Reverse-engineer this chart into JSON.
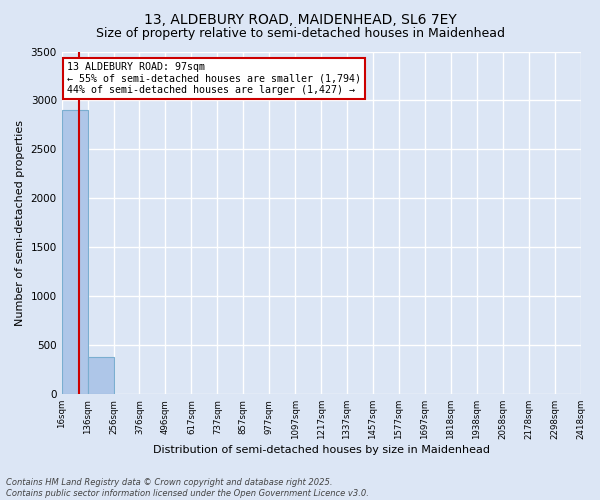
{
  "title1": "13, ALDEBURY ROAD, MAIDENHEAD, SL6 7EY",
  "title2": "Size of property relative to semi-detached houses in Maidenhead",
  "xlabel": "Distribution of semi-detached houses by size in Maidenhead",
  "ylabel": "Number of semi-detached properties",
  "annotation_title": "13 ALDEBURY ROAD: 97sqm",
  "annotation_line1": "← 55% of semi-detached houses are smaller (1,794)",
  "annotation_line2": "44% of semi-detached houses are larger (1,427) →",
  "footer1": "Contains HM Land Registry data © Crown copyright and database right 2025.",
  "footer2": "Contains public sector information licensed under the Open Government Licence v3.0.",
  "property_size": 97,
  "bin_edges": [
    16,
    136,
    256,
    376,
    496,
    617,
    737,
    857,
    977,
    1097,
    1217,
    1337,
    1457,
    1577,
    1697,
    1818,
    1938,
    2058,
    2178,
    2298,
    2418
  ],
  "bin_labels": [
    "16sqm",
    "136sqm",
    "256sqm",
    "376sqm",
    "496sqm",
    "617sqm",
    "737sqm",
    "857sqm",
    "977sqm",
    "1097sqm",
    "1217sqm",
    "1337sqm",
    "1457sqm",
    "1577sqm",
    "1697sqm",
    "1818sqm",
    "1938sqm",
    "2058sqm",
    "2178sqm",
    "2298sqm",
    "2418sqm"
  ],
  "bar_heights": [
    2900,
    375,
    0,
    0,
    0,
    0,
    0,
    0,
    0,
    0,
    0,
    0,
    0,
    0,
    0,
    0,
    0,
    0,
    0,
    0
  ],
  "bar_color": "#aec6e8",
  "bar_edgecolor": "#7aaed0",
  "redline_color": "#cc0000",
  "annotation_box_color": "#cc0000",
  "bg_color": "#dce6f5",
  "grid_color": "#ffffff",
  "ylim": [
    0,
    3500
  ],
  "title_fontsize": 10,
  "subtitle_fontsize": 9
}
